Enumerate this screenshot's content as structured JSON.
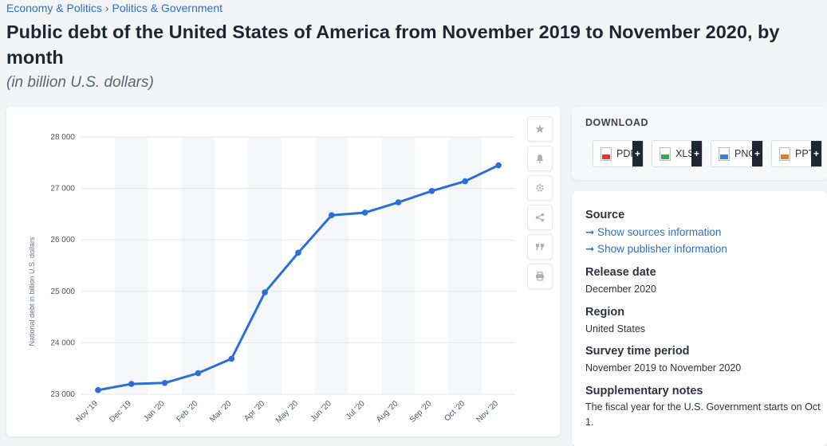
{
  "breadcrumb": {
    "items": [
      "Economy & Politics",
      "Politics & Government"
    ],
    "separator": "›"
  },
  "page": {
    "title": "Public debt of the United States of America from November 2019 to November 2020, by month",
    "subtitle": "(in billion U.S. dollars)"
  },
  "colors": {
    "line": "#2b6fd6",
    "link": "#2d6ecb",
    "band": "#f5f6f8"
  },
  "chart_data": {
    "type": "line",
    "title": "",
    "xlabel": "",
    "ylabel": "National debt in billion U.S. dollars",
    "categories": [
      "Nov '19",
      "Dec '19",
      "Jan '20",
      "Feb '20",
      "Mar '20",
      "Apr '20",
      "May '20",
      "Jun '20",
      "Jul '20",
      "Aug '20",
      "Sep '20",
      "Oct '20",
      "Nov '20"
    ],
    "series": [
      {
        "name": "National debt",
        "values": [
          23080,
          23200,
          23220,
          23410,
          23690,
          24980,
          25750,
          26480,
          26530,
          26730,
          26950,
          27140,
          27450
        ]
      }
    ],
    "ylim": [
      23000,
      28000
    ],
    "yticks": [
      23000,
      24000,
      25000,
      26000,
      27000,
      28000
    ],
    "ytick_labels": [
      "23 000",
      "24 000",
      "25 000",
      "26 000",
      "27 000",
      "28 000"
    ],
    "grid": true
  },
  "toolbar": {
    "icons": [
      "star-icon",
      "bell-icon",
      "gear-icon",
      "share-icon",
      "quote-icon",
      "print-icon"
    ]
  },
  "download": {
    "label": "DOWNLOAD",
    "buttons": [
      {
        "label": "PDF",
        "plus": "+",
        "color": "#d63a3a"
      },
      {
        "label": "XLS",
        "plus": "+",
        "color": "#3fa64a"
      },
      {
        "label": "PNG",
        "plus": "+",
        "color": "#3f7fd0"
      },
      {
        "label": "PPT",
        "plus": "+",
        "color": "#e07a2e"
      }
    ]
  },
  "info": {
    "source_heading": "Source",
    "show_sources": "➞ Show sources information",
    "show_publisher": "➞ Show publisher information",
    "release_heading": "Release date",
    "release_value": "December 2020",
    "region_heading": "Region",
    "region_value": "United States",
    "survey_heading": "Survey time period",
    "survey_value": "November 2019 to November 2020",
    "notes_heading": "Supplementary notes",
    "notes_value": "The fiscal year for the U.S. Government starts on Oct 1."
  }
}
